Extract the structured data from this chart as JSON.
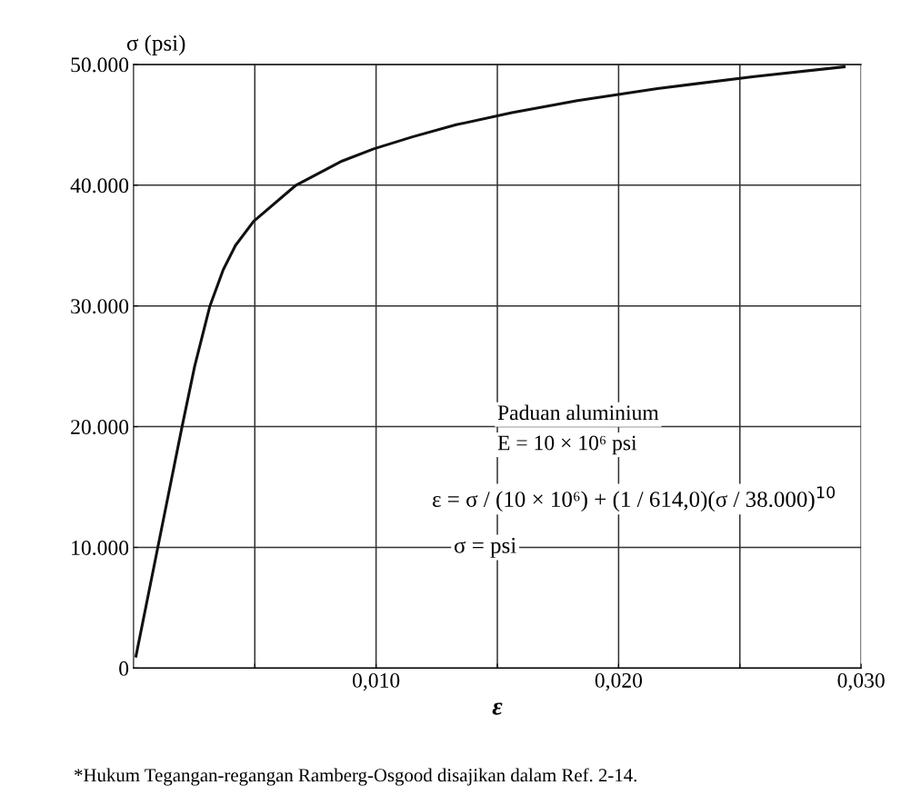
{
  "chart_data": {
    "type": "line",
    "ylabel": "σ (psi)",
    "xlabel": "ε",
    "x": [
      0.0001,
      0.001,
      0.002,
      0.00252,
      0.00315,
      0.0037,
      0.0042,
      0.00495,
      0.0067,
      0.0086,
      0.0099,
      0.0115,
      0.0133,
      0.0156,
      0.0183,
      0.0216,
      0.0256,
      0.0293
    ],
    "series": [
      {
        "color": "#111111",
        "values": [
          1000,
          10000,
          20000,
          25000,
          30000,
          33000,
          35000,
          37000,
          40000,
          42000,
          43000,
          44000,
          45000,
          46000,
          47000,
          48000,
          49000,
          49800
        ]
      }
    ],
    "xlim": [
      0,
      0.03
    ],
    "ylim": [
      0,
      50000
    ],
    "xticks": [
      {
        "value": 0.005,
        "label": null
      },
      {
        "value": 0.01,
        "label": "0,010"
      },
      {
        "value": 0.015,
        "label": null
      },
      {
        "value": 0.02,
        "label": "0,020"
      },
      {
        "value": 0.025,
        "label": null
      },
      {
        "value": 0.03,
        "label": "0,030"
      }
    ],
    "yticks": [
      {
        "value": 0,
        "label": "0"
      },
      {
        "value": 10000,
        "label": "10.000"
      },
      {
        "value": 20000,
        "label": "20.000"
      },
      {
        "value": 30000,
        "label": "30.000"
      },
      {
        "value": 40000,
        "label": "40.000"
      },
      {
        "value": 50000,
        "label": "50.000"
      }
    ],
    "grid": true,
    "legend": false,
    "marker": "none",
    "line_style": "solid",
    "annotations": [
      "Paduan aluminium",
      "E = 10 × 10⁶ psi",
      "ε = σ / (10 × 10⁶) + (1 / 614,0)(σ / 38.000)$^{10}$",
      "σ = psi",
      "*Hukum Tegangan-regangan Ramberg-Osgood disajikan dalam Ref. 2-14."
    ]
  }
}
